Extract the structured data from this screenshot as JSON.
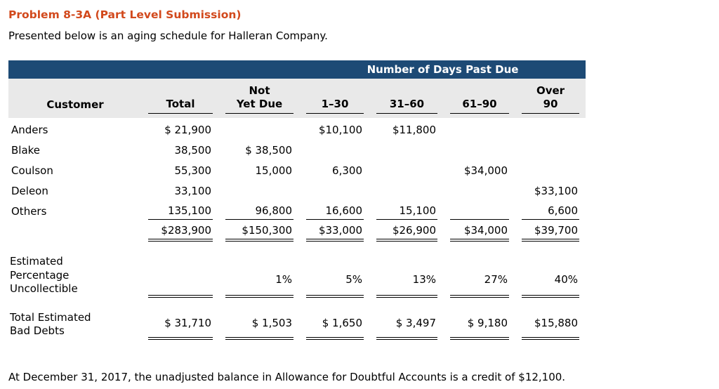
{
  "page": {
    "title": "Problem 8-3A (Part Level Submission)",
    "intro": "Presented below is an aging schedule for Halleran Company.",
    "footer": "At December 31, 2017, the unadjusted balance in Allowance for Doubtful Accounts is a credit of $12,100."
  },
  "colors": {
    "title_text": "#d2491c",
    "band_bg": "#1d4a75",
    "band_text": "#ffffff",
    "header_bg": "#e9e9e9"
  },
  "table": {
    "band_title": "Number of Days Past Due",
    "headers": {
      "customer": "Customer",
      "total": "Total",
      "not_yet_due_top": "Not",
      "not_yet_due_bottom": "Yet Due",
      "days_1_30": "1–30",
      "days_31_60": "31–60",
      "days_61_90": "61–90",
      "over_90_top": "Over",
      "over_90_bottom": "90"
    },
    "rows": [
      {
        "customer": "Anders",
        "total": "$ 21,900",
        "not_yet_due": "",
        "d1_30": "$10,100",
        "d31_60": "$11,800",
        "d61_90": "",
        "over_90": ""
      },
      {
        "customer": "Blake",
        "total": "38,500",
        "not_yet_due": "$ 38,500",
        "d1_30": "",
        "d31_60": "",
        "d61_90": "",
        "over_90": ""
      },
      {
        "customer": "Coulson",
        "total": "55,300",
        "not_yet_due": "15,000",
        "d1_30": "6,300",
        "d31_60": "",
        "d61_90": "$34,000",
        "over_90": ""
      },
      {
        "customer": "Deleon",
        "total": "33,100",
        "not_yet_due": "",
        "d1_30": "",
        "d31_60": "",
        "d61_90": "",
        "over_90": "$33,100"
      },
      {
        "customer": "Others",
        "total": "135,100",
        "not_yet_due": "96,800",
        "d1_30": "16,600",
        "d31_60": "15,100",
        "d61_90": "",
        "over_90": "6,600"
      }
    ],
    "totals": {
      "total": "$283,900",
      "not_yet_due": "$150,300",
      "d1_30": "$33,000",
      "d31_60": "$26,900",
      "d61_90": "$34,000",
      "over_90": "$39,700"
    },
    "percentage": {
      "label": "Estimated Percentage Uncollectible",
      "total": "",
      "not_yet_due": "1%",
      "d1_30": "5%",
      "d31_60": "13%",
      "d61_90": "27%",
      "over_90": "40%"
    },
    "bad_debts": {
      "label": "Total Estimated Bad Debts",
      "total": "$ 31,710",
      "not_yet_due": "$ 1,503",
      "d1_30": "$ 1,650",
      "d31_60": "$ 3,497",
      "d61_90": "$ 9,180",
      "over_90": "$15,880"
    }
  }
}
